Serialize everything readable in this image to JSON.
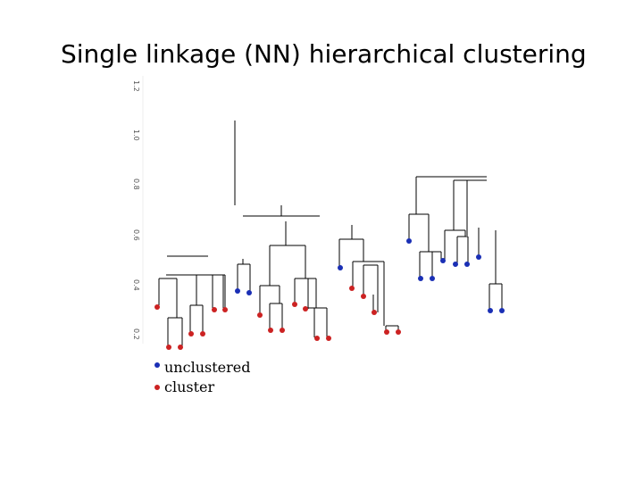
{
  "title": "Single linkage (NN) hierarchical clustering",
  "axis": {
    "ticks": [
      "1.2",
      "1.0",
      "0.8",
      "0.6",
      "0.4",
      "0.2"
    ]
  },
  "colors": {
    "unclustered": "#1a2fb5",
    "cluster": "#cc2222",
    "line": "#000000"
  },
  "legend": {
    "items": [
      {
        "label": "unclustered",
        "color": "#1a2fb5"
      },
      {
        "label": "cluster",
        "color": "#cc2222"
      }
    ]
  }
}
